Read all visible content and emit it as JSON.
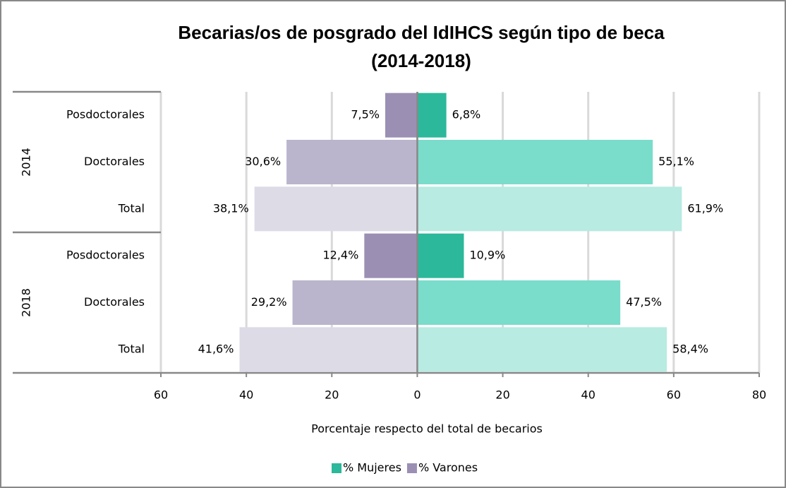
{
  "chart_data": {
    "type": "diverging-bar",
    "title": [
      "Becarias/os de posgrado del IdIHCS según tipo de beca",
      "(2014-2018)"
    ],
    "groups": [
      {
        "name": "2014",
        "categories": [
          "Posdoctorales",
          "Doctorales",
          "Total"
        ]
      },
      {
        "name": "2018",
        "categories": [
          "Posdoctorales",
          "Doctorales",
          "Total"
        ]
      }
    ],
    "series": [
      {
        "name": "% Mujeres",
        "color": "#2bb89b",
        "colors": [
          "#2bb89b",
          "#7adccb",
          "#b8ebe2",
          "#2bb89b",
          "#7adccb",
          "#b8ebe2"
        ],
        "values": [
          6.8,
          55.1,
          61.9,
          10.9,
          47.5,
          58.4
        ],
        "value_labels": [
          "6,8%",
          "55,1%",
          "61,9%",
          "10,9%",
          "47,5%",
          "58,4%"
        ]
      },
      {
        "name": "% Varones",
        "color": "#9b8fb3",
        "colors": [
          "#9b8fb3",
          "#bab5cc",
          "#dddbe6",
          "#9b8fb3",
          "#bab5cc",
          "#dddbe6"
        ],
        "values": [
          -7.5,
          -30.6,
          -38.1,
          -12.4,
          -29.2,
          -41.6
        ],
        "value_labels": [
          "7,5%",
          "30,6%",
          "38,1%",
          "12,4%",
          "29,2%",
          "41,6%"
        ]
      }
    ],
    "xlabel": "Porcentaje respecto del total de becarios",
    "xlim": [
      -60,
      80
    ],
    "xticks": [
      {
        "value": -60,
        "label": "60"
      },
      {
        "value": -40,
        "label": "40"
      },
      {
        "value": -20,
        "label": "20"
      },
      0,
      20,
      40,
      60,
      80
    ],
    "grid": true,
    "legend": "bottom"
  }
}
